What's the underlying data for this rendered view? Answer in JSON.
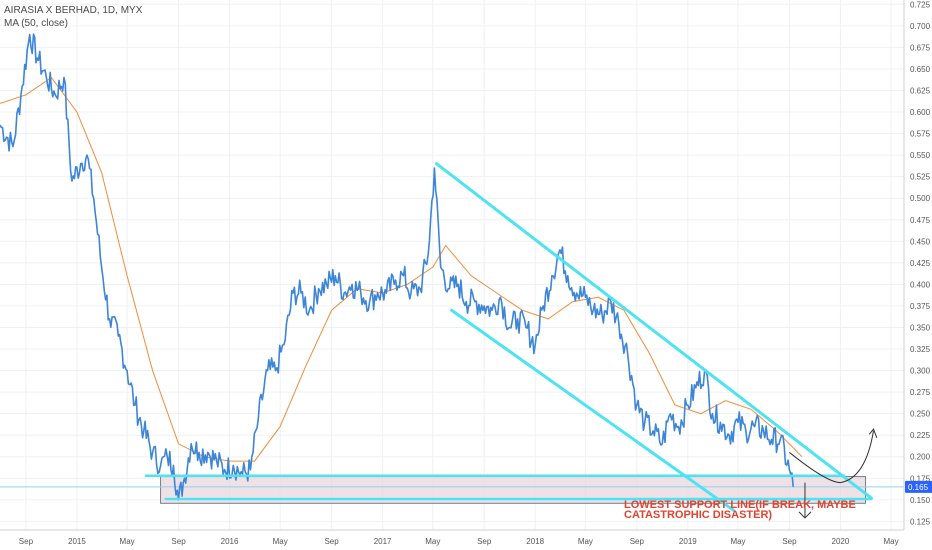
{
  "chart_data": {
    "type": "line",
    "title": "AIRASIA X BERHAD, 1D, MYX",
    "indicator": "MA (50, close)",
    "x_tick_labels": [
      "Sep",
      "2015",
      "May",
      "Sep",
      "2016",
      "May",
      "Sep",
      "2017",
      "May",
      "Sep",
      "2018",
      "May",
      "Sep",
      "2019",
      "May",
      "Sep",
      "2020",
      "May"
    ],
    "y_tick_labels": [
      "0.125",
      "0.150",
      "0.175",
      "0.200",
      "0.225",
      "0.250",
      "0.275",
      "0.300",
      "0.325",
      "0.350",
      "0.375",
      "0.400",
      "0.425",
      "0.450",
      "0.475",
      "0.500",
      "0.525",
      "0.550",
      "0.575",
      "0.600",
      "0.625",
      "0.650",
      "0.675",
      "0.700",
      "0.725"
    ],
    "ylim": [
      0.115,
      0.73
    ],
    "xlim": [
      "2014-07",
      "2020-06"
    ],
    "grid": true,
    "last_price": "0.165",
    "series": [
      {
        "name": "AIRASIA X BERHAD",
        "color": "#3d85d6",
        "x": [
          "2014-07-01",
          "2014-08-01",
          "2014-08-20",
          "2014-09-10",
          "2014-10-01",
          "2014-10-20",
          "2014-11-10",
          "2014-12-01",
          "2014-12-20",
          "2015-01-10",
          "2015-01-25",
          "2015-02-10",
          "2015-03-01",
          "2015-03-20",
          "2015-04-10",
          "2015-05-01",
          "2015-05-20",
          "2015-06-10",
          "2015-07-01",
          "2015-07-20",
          "2015-08-05",
          "2015-08-20",
          "2015-09-01",
          "2015-09-15",
          "2015-10-01",
          "2015-10-20",
          "2015-11-10",
          "2015-12-01",
          "2015-12-20",
          "2016-01-10",
          "2016-02-01",
          "2016-02-20",
          "2016-03-10",
          "2016-04-01",
          "2016-04-20",
          "2016-05-10",
          "2016-06-01",
          "2016-06-20",
          "2016-07-10",
          "2016-08-01",
          "2016-08-20",
          "2016-09-10",
          "2016-10-01",
          "2016-10-20",
          "2016-11-10",
          "2016-12-01",
          "2016-12-20",
          "2017-01-10",
          "2017-02-01",
          "2017-02-20",
          "2017-03-10",
          "2017-04-01",
          "2017-04-20",
          "2017-05-05",
          "2017-05-20",
          "2017-06-10",
          "2017-07-01",
          "2017-07-20",
          "2017-08-10",
          "2017-09-01",
          "2017-09-20",
          "2017-10-10",
          "2017-11-01",
          "2017-11-20",
          "2017-12-10",
          "2018-01-01",
          "2018-01-20",
          "2018-02-10",
          "2018-03-01",
          "2018-03-20",
          "2018-04-10",
          "2018-05-01",
          "2018-05-20",
          "2018-06-10",
          "2018-07-01",
          "2018-07-20",
          "2018-08-10",
          "2018-09-01",
          "2018-09-20",
          "2018-10-10",
          "2018-11-01",
          "2018-11-20",
          "2018-12-10",
          "2019-01-01",
          "2019-01-20",
          "2019-02-10",
          "2019-03-01",
          "2019-03-20",
          "2019-04-10",
          "2019-05-01",
          "2019-05-20",
          "2019-06-10",
          "2019-07-01",
          "2019-07-20",
          "2019-08-10",
          "2019-09-01",
          "2019-09-10"
        ],
        "values": [
          0.585,
          0.56,
          0.62,
          0.69,
          0.66,
          0.64,
          0.62,
          0.64,
          0.52,
          0.54,
          0.55,
          0.5,
          0.42,
          0.36,
          0.34,
          0.3,
          0.26,
          0.23,
          0.205,
          0.19,
          0.2,
          0.19,
          0.15,
          0.175,
          0.215,
          0.205,
          0.205,
          0.195,
          0.185,
          0.19,
          0.18,
          0.185,
          0.245,
          0.3,
          0.3,
          0.33,
          0.39,
          0.39,
          0.37,
          0.395,
          0.4,
          0.41,
          0.39,
          0.4,
          0.39,
          0.38,
          0.39,
          0.39,
          0.405,
          0.41,
          0.39,
          0.395,
          0.435,
          0.535,
          0.42,
          0.395,
          0.4,
          0.38,
          0.38,
          0.375,
          0.37,
          0.385,
          0.35,
          0.36,
          0.35,
          0.33,
          0.375,
          0.41,
          0.44,
          0.41,
          0.39,
          0.385,
          0.37,
          0.365,
          0.38,
          0.355,
          0.32,
          0.26,
          0.24,
          0.23,
          0.215,
          0.25,
          0.235,
          0.26,
          0.28,
          0.3,
          0.25,
          0.24,
          0.225,
          0.24,
          0.23,
          0.235,
          0.23,
          0.22,
          0.22,
          0.185,
          0.165
        ]
      },
      {
        "name": "MA (50, close)",
        "color": "#f28c3a",
        "x": [
          "2014-07-01",
          "2014-09-01",
          "2014-11-01",
          "2015-01-01",
          "2015-03-01",
          "2015-05-01",
          "2015-07-01",
          "2015-09-01",
          "2015-11-01",
          "2016-01-01",
          "2016-03-01",
          "2016-05-01",
          "2016-07-01",
          "2016-09-01",
          "2016-11-01",
          "2017-01-01",
          "2017-03-01",
          "2017-05-01",
          "2017-06-01",
          "2017-08-01",
          "2017-10-01",
          "2017-12-01",
          "2018-02-01",
          "2018-04-01",
          "2018-06-01",
          "2018-08-01",
          "2018-10-01",
          "2018-12-01",
          "2019-02-01",
          "2019-04-01",
          "2019-06-01",
          "2019-08-01",
          "2019-10-01"
        ],
        "values": [
          0.61,
          0.62,
          0.64,
          0.6,
          0.53,
          0.41,
          0.3,
          0.215,
          0.2,
          0.195,
          0.195,
          0.235,
          0.305,
          0.37,
          0.395,
          0.39,
          0.4,
          0.42,
          0.445,
          0.41,
          0.39,
          0.37,
          0.36,
          0.38,
          0.385,
          0.37,
          0.32,
          0.26,
          0.25,
          0.265,
          0.255,
          0.23,
          0.2
        ]
      }
    ],
    "drawings": {
      "channel_color": "#4de3f2",
      "channel_upper": {
        "from": [
          "2017-05-10",
          0.54
        ],
        "to": [
          "2020-03-15",
          0.152
        ]
      },
      "channel_lower": {
        "from": [
          "2017-06-15",
          0.37
        ],
        "to": [
          "2019-04-20",
          0.138
        ]
      },
      "support_line": {
        "from": [
          "2015-06-15",
          0.178
        ],
        "to": [
          "2020-01-10",
          0.178
        ]
      },
      "support_line_lower": {
        "from": [
          "2015-08-01",
          0.151
        ],
        "to": [
          "2020-03-15",
          0.151
        ]
      },
      "support_zone": {
        "x0": "2015-07-20",
        "x1": "2020-03-01",
        "y0": 0.177,
        "y1": 0.146,
        "color": "#e8d5dd"
      },
      "annotation": "LOWEST SUPPORT LINE(IF BREAK, MAYBE CATASTROPHIC DISASTER)",
      "annotation_color": "#e0432f"
    }
  }
}
